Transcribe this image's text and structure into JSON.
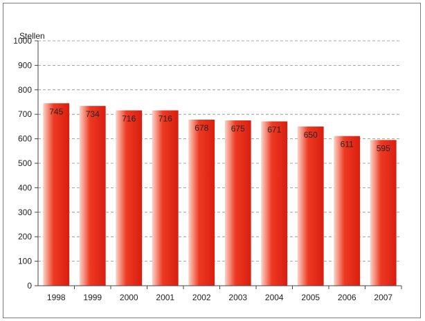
{
  "chart_data": {
    "type": "bar",
    "title": "",
    "ylabel": "Stellen",
    "xlabel": "",
    "categories": [
      "1998",
      "1999",
      "2000",
      "2001",
      "2002",
      "2003",
      "2004",
      "2005",
      "2006",
      "2007"
    ],
    "values": [
      745,
      734,
      716,
      716,
      678,
      675,
      671,
      650,
      611,
      595
    ],
    "value_labels": [
      "745",
      "734",
      "716",
      "716",
      "678",
      "675",
      "671",
      "650",
      "611",
      "595"
    ],
    "ylim": [
      0,
      1000
    ],
    "yticks": [
      0,
      100,
      200,
      300,
      400,
      500,
      600,
      700,
      800,
      900,
      1000
    ],
    "ytick_labels": [
      "0",
      "100",
      "200",
      "300",
      "400",
      "500",
      "600",
      "700",
      "800",
      "900",
      "1000"
    ],
    "grid": "horizontal-dashed",
    "legend": "none",
    "colors": {
      "bar_light": "#fbd3c6",
      "bar_mid": "#ee3a22",
      "bar_dark": "#d81e10",
      "grid": "#8a8a8a",
      "axis": "#444444"
    }
  }
}
